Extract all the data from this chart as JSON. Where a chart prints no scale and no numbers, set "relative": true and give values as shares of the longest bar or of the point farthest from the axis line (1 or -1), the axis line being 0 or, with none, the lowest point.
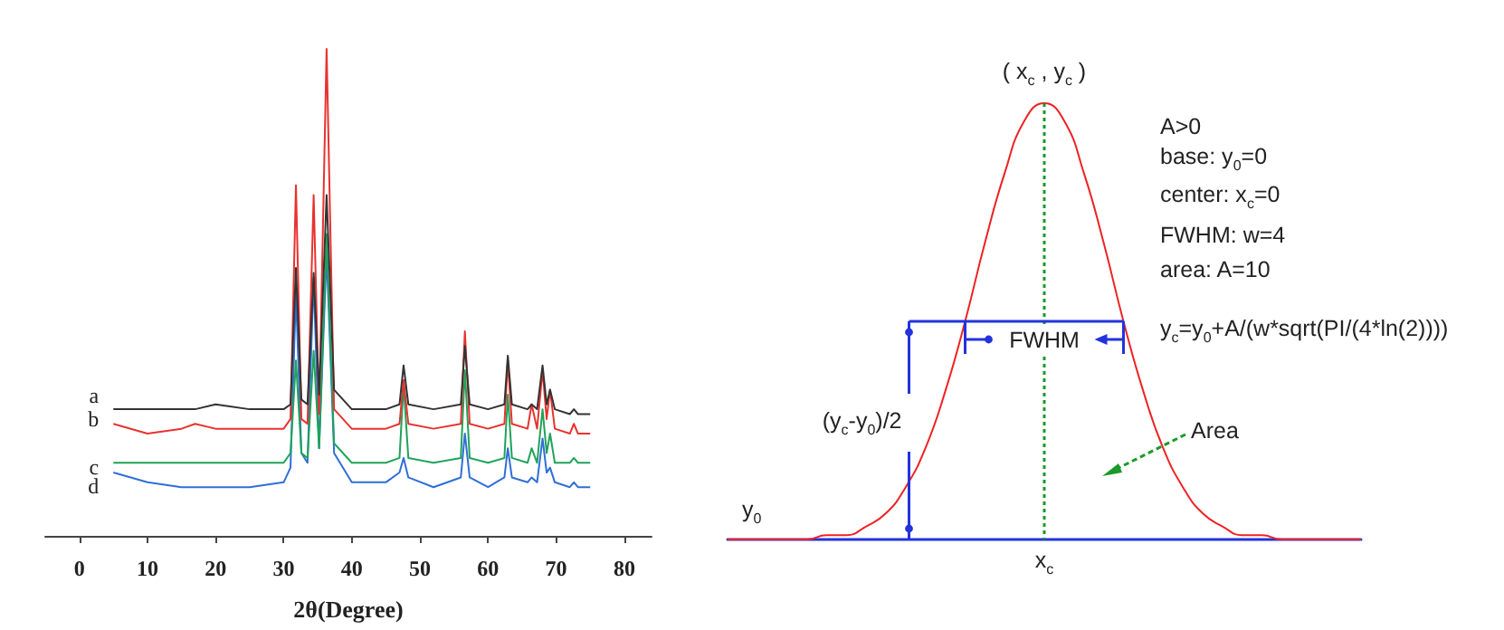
{
  "chart_data": [
    {
      "type": "line",
      "relative": true,
      "xlabel": "2θ(Degree)",
      "xlim": [
        -5,
        84
      ],
      "xticks": [
        0,
        10,
        20,
        30,
        40,
        50,
        60,
        70,
        80
      ],
      "tick_labels": "x",
      "grid": false,
      "legend": false,
      "x": [
        5,
        10,
        15,
        17,
        20,
        25,
        30,
        31,
        31.8,
        32.6,
        33.5,
        34.4,
        35.2,
        36.3,
        37.4,
        40,
        45,
        47,
        47.6,
        48.3,
        52,
        56,
        56.6,
        57.3,
        60,
        62.4,
        62.9,
        63.5,
        65.8,
        66.4,
        67.2,
        68,
        68.6,
        69.1,
        69.8,
        72,
        72.6,
        73.2,
        75
      ],
      "series": [
        {
          "name": "a",
          "color": "#333333",
          "values": [
            0.26,
            0.26,
            0.26,
            0.26,
            0.27,
            0.26,
            0.26,
            0.27,
            0.55,
            0.28,
            0.27,
            0.54,
            0.29,
            0.7,
            0.3,
            0.26,
            0.26,
            0.27,
            0.35,
            0.27,
            0.26,
            0.27,
            0.39,
            0.27,
            0.26,
            0.27,
            0.37,
            0.27,
            0.26,
            0.27,
            0.26,
            0.35,
            0.27,
            0.3,
            0.26,
            0.25,
            0.26,
            0.25,
            0.25
          ]
        },
        {
          "name": "b",
          "color": "#e8322f",
          "values": [
            0.23,
            0.21,
            0.22,
            0.23,
            0.22,
            0.22,
            0.22,
            0.24,
            0.72,
            0.24,
            0.23,
            0.7,
            0.25,
            1,
            0.26,
            0.22,
            0.22,
            0.23,
            0.32,
            0.23,
            0.22,
            0.23,
            0.42,
            0.23,
            0.22,
            0.23,
            0.36,
            0.23,
            0.22,
            0.27,
            0.22,
            0.34,
            0.24,
            0.3,
            0.22,
            0.21,
            0.23,
            0.21,
            0.21
          ]
        },
        {
          "name": "c",
          "color": "#1fa35a",
          "values": [
            0.15,
            0.15,
            0.15,
            0.15,
            0.15,
            0.15,
            0.15,
            0.17,
            0.36,
            0.17,
            0.16,
            0.38,
            0.18,
            0.62,
            0.19,
            0.15,
            0.15,
            0.16,
            0.31,
            0.16,
            0.15,
            0.16,
            0.34,
            0.16,
            0.15,
            0.16,
            0.29,
            0.16,
            0.15,
            0.18,
            0.15,
            0.26,
            0.17,
            0.21,
            0.15,
            0.15,
            0.16,
            0.15,
            0.15
          ]
        },
        {
          "name": "d",
          "color": "#2f6fd6",
          "values": [
            0.13,
            0.11,
            0.1,
            0.1,
            0.1,
            0.1,
            0.11,
            0.14,
            0.5,
            0.17,
            0.15,
            0.53,
            0.18,
            0.58,
            0.17,
            0.11,
            0.11,
            0.13,
            0.16,
            0.12,
            0.1,
            0.12,
            0.21,
            0.12,
            0.1,
            0.12,
            0.18,
            0.12,
            0.11,
            0.12,
            0.11,
            0.2,
            0.13,
            0.14,
            0.11,
            0.1,
            0.11,
            0.1,
            0.1
          ]
        }
      ]
    },
    {
      "type": "line",
      "relative": true,
      "tick_labels": false,
      "grid": false,
      "legend": false,
      "categories": [
        null,
        null,
        null,
        null,
        null,
        null,
        null,
        null,
        null,
        null,
        null,
        null,
        null,
        null,
        null,
        null,
        null,
        null,
        null,
        null,
        null,
        null,
        null,
        null,
        null,
        null,
        null,
        null,
        null,
        null,
        null,
        null,
        null
      ],
      "series": [
        {
          "color": "#ee2222",
          "values": [
            0,
            0,
            0,
            0,
            0,
            0.01,
            0.01,
            0.03,
            0.06,
            0.12,
            0.21,
            0.34,
            0.5,
            0.68,
            0.84,
            0.96,
            1,
            0.96,
            0.84,
            0.68,
            0.5,
            0.34,
            0.21,
            0.12,
            0.06,
            0.03,
            0.01,
            0.01,
            0,
            0,
            0,
            0,
            0
          ]
        }
      ],
      "annotations": [
        "( x$_{c}$ , y$_{c}$ )",
        "A>0",
        "base: y$_{0}$=0",
        "center: x$_{c}$=0",
        "FWHM: w=4",
        "area: A=10",
        "y$_{c}$=y$_{0}$+A/(w*sqrt(PI/(4*ln(2))))",
        "FWHM",
        "(y$_{c}$-y$_{0}$)/2",
        "Area",
        "y$_{0}$",
        "x$_{c}$"
      ]
    }
  ]
}
